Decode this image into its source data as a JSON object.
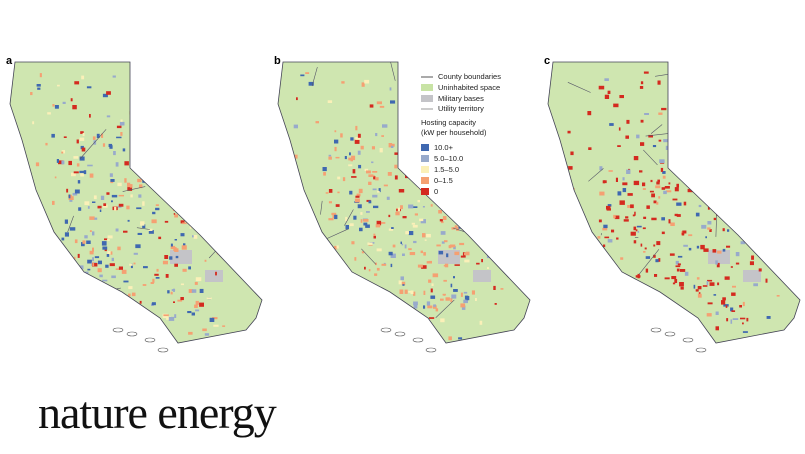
{
  "panels": [
    {
      "label": "a"
    },
    {
      "label": "b"
    },
    {
      "label": "c"
    }
  ],
  "legend": {
    "items": [
      "County boundaries",
      "Uninhabited space",
      "Military bases",
      "Utility territory"
    ],
    "heading": "Hosting capacity",
    "subheading": "(kW per household)",
    "scale": [
      "10.0+",
      "5.0–10.0",
      "1.5–5.0",
      "0–1.5",
      "0"
    ]
  },
  "logo": "nature energy"
}
